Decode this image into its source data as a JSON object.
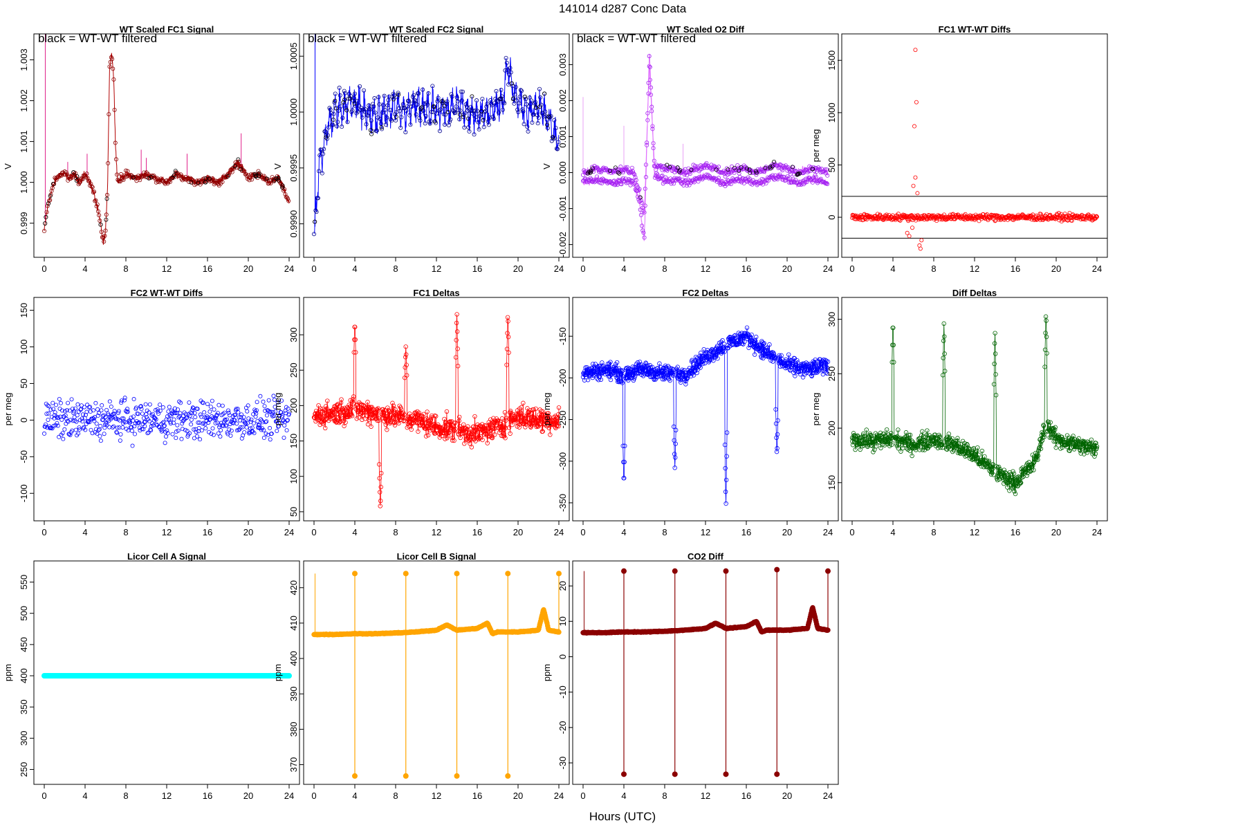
{
  "page": {
    "title": "141014   d287   Conc Data",
    "x_axis_label": "Hours (UTC)"
  },
  "chart_data": [
    {
      "type": "line",
      "title": "WT Scaled FC1 Signal",
      "annotation": "black = WT-WT filtered",
      "ylabel": "V",
      "xlim": [
        0,
        24
      ],
      "ylim": [
        0.9983,
        1.0035
      ],
      "xticks": [
        0,
        4,
        8,
        12,
        16,
        20,
        24
      ],
      "yticks": [
        0.999,
        1.0,
        1.001,
        1.002,
        1.003
      ],
      "yticklabels": [
        "0.999",
        "1.000",
        "1.001",
        "1.002",
        "1.003"
      ],
      "colors": {
        "line": "#b20000",
        "points": "#8b0000",
        "spikes": "#e0208a",
        "filtered": "#000000"
      },
      "series": [
        {
          "x": [
            0,
            0.2,
            0.5,
            1,
            1.5,
            2,
            2.5,
            3,
            3.5,
            4,
            4.5,
            5,
            5.5,
            5.8,
            6,
            6.2,
            6.4,
            6.6,
            6.8,
            7,
            7.2,
            7.5,
            8,
            9,
            10,
            11,
            12,
            13,
            14,
            15,
            16,
            17,
            18,
            19,
            19.5,
            20,
            21,
            22,
            23,
            23.5,
            24
          ],
          "values": [
            0.9988,
            0.9992,
            0.9996,
            1.0,
            1.0002,
            1.0002,
            1.0001,
            1.0002,
            1.0,
            1.0002,
            1.0,
            0.9996,
            0.999,
            0.9985,
            0.9988,
            0.9998,
            1.0028,
            1.0032,
            1.0026,
            1.0008,
            1.0,
            1.0001,
            1.0002,
            1.0001,
            1.0002,
            1.0001,
            1.0,
            1.0002,
            1.0001,
            1.0,
            1.0001,
            1.0,
            1.0002,
            1.0005,
            1.0003,
            1.0001,
            1.0002,
            1.0,
            1.0001,
            0.9998,
            0.9995
          ]
        }
      ],
      "spikes": [
        {
          "x": 0.1,
          "top": 1.0037
        },
        {
          "x": 2.3,
          "top": 1.0005
        },
        {
          "x": 4.2,
          "top": 1.0007
        },
        {
          "x": 9.5,
          "top": 1.0008
        },
        {
          "x": 10,
          "top": 1.0006
        },
        {
          "x": 14,
          "top": 1.0007
        },
        {
          "x": 19.3,
          "top": 1.0012
        }
      ]
    },
    {
      "type": "line",
      "title": "WT Scaled FC2 Signal",
      "annotation": "black = WT-WT filtered",
      "ylabel": "V",
      "xlim": [
        0,
        24
      ],
      "ylim": [
        0.99875,
        1.00065
      ],
      "xticks": [
        0,
        4,
        8,
        12,
        16,
        20,
        24
      ],
      "yticks": [
        0.999,
        0.9995,
        1.0,
        1.0005
      ],
      "yticklabels": [
        "0.9990",
        "0.9995",
        "1.0000",
        "1.0005"
      ],
      "colors": {
        "line": "#0000ff",
        "points": "#00008b",
        "filtered": "#000000"
      },
      "series": [
        {
          "x": [
            0,
            0.2,
            0.5,
            1,
            1.5,
            2,
            3,
            4,
            5,
            6,
            7,
            8,
            9,
            10,
            11,
            12,
            13,
            14,
            15,
            16,
            17,
            18,
            18.5,
            19,
            19.5,
            20,
            21,
            22,
            23,
            23.5,
            24
          ],
          "values": [
            0.99885,
            0.9991,
            0.9995,
            0.99975,
            0.9999,
            1.0,
            1.00005,
            1.0001,
            1.0,
            0.99995,
            1.0,
            1.00005,
            1.0,
            1.0001,
            1.0,
            1.00005,
            1.0,
            1.0001,
            1.0,
            0.99995,
            1.0,
            1.00005,
            1.0001,
            1.0004,
            1.0002,
            1.0001,
            1.0,
            1.00005,
            0.99995,
            0.9998,
            0.99975
          ]
        }
      ],
      "spikes": [
        {
          "x": 0.1,
          "top": 1.0007
        }
      ]
    },
    {
      "type": "line",
      "title": "WT Scaled O2 Diff",
      "annotation": "black = WT-WT filtered",
      "ylabel": "V",
      "xlim": [
        0,
        24
      ],
      "ylim": [
        -0.0022,
        0.0037
      ],
      "xticks": [
        0,
        4,
        8,
        12,
        16,
        20,
        24
      ],
      "yticks": [
        -0.002,
        -0.001,
        0.0,
        0.001,
        0.002,
        0.003
      ],
      "yticklabels": [
        "-0.002",
        "-0.001",
        "0.000",
        "0.001",
        "0.002",
        "0.003"
      ],
      "colors": {
        "line": "#e070ff",
        "points": "#a020f0",
        "spikes": "#e9a0f5",
        "filtered": "#000000"
      },
      "series": [
        {
          "name": "upper band",
          "x": [
            0,
            1,
            2,
            3,
            4,
            5,
            5.5,
            6,
            6.5,
            7,
            8,
            9,
            10,
            11,
            12,
            13,
            14,
            15,
            16,
            17,
            18,
            19,
            20,
            21,
            22,
            23,
            24
          ],
          "values": [
            0.0,
            0.0001,
            0.0001,
            0.0,
            0.0001,
            0.0,
            -0.0005,
            -0.0012,
            0.003,
            0.0002,
            0.0001,
            0.0001,
            0.0,
            0.0001,
            0.0002,
            0.0001,
            0.0,
            0.0001,
            0.0001,
            0.0,
            0.0001,
            0.0002,
            0.0001,
            0.0,
            0.0001,
            0.0001,
            0.0
          ]
        },
        {
          "name": "lower band",
          "x": [
            0,
            1,
            2,
            3,
            4,
            5,
            5.5,
            6,
            6.5,
            7,
            8,
            9,
            10,
            11,
            12,
            13,
            14,
            15,
            16,
            17,
            18,
            19,
            20,
            21,
            22,
            23,
            24
          ],
          "values": [
            -0.0003,
            -0.0002,
            -0.0002,
            -0.0003,
            -0.0002,
            -0.0003,
            -0.0008,
            -0.0019,
            0.0034,
            -0.0001,
            -0.0002,
            -0.0002,
            -0.0003,
            -0.0002,
            -0.0001,
            -0.0002,
            -0.0003,
            -0.0002,
            -0.0002,
            -0.0003,
            -0.0002,
            -0.0001,
            -0.0002,
            -0.0003,
            -0.0002,
            -0.0002,
            -0.0003
          ]
        }
      ],
      "spikes": [
        {
          "x": 0,
          "top": 0.0021
        },
        {
          "x": 4,
          "top": 0.0013
        },
        {
          "x": 9.8,
          "top": 0.0008
        }
      ]
    },
    {
      "type": "scatter",
      "title": "FC1 WT-WT Diffs",
      "ylabel": "per meg",
      "xlim": [
        0,
        24
      ],
      "ylim": [
        -330,
        1700
      ],
      "hlines": [
        200,
        -200
      ],
      "xticks": [
        0,
        4,
        8,
        12,
        16,
        20,
        24
      ],
      "yticks": [
        0,
        500,
        1000,
        1500
      ],
      "yticklabels": [
        "0",
        "500",
        "1000",
        "1500"
      ],
      "colors": {
        "points": "#ff0000"
      },
      "spread": 45,
      "outliers": [
        {
          "x": 6.2,
          "y": 1600
        },
        {
          "x": 6.3,
          "y": 1100
        },
        {
          "x": 6.1,
          "y": 870
        },
        {
          "x": 6.2,
          "y": 380
        },
        {
          "x": 6.0,
          "y": 300
        },
        {
          "x": 6.4,
          "y": 230
        },
        {
          "x": 5.4,
          "y": -150
        },
        {
          "x": 5.6,
          "y": -180
        },
        {
          "x": 6.6,
          "y": -270
        },
        {
          "x": 6.7,
          "y": -300
        },
        {
          "x": 6.8,
          "y": -220
        },
        {
          "x": 5.9,
          "y": -100
        }
      ]
    },
    {
      "type": "scatter",
      "title": "FC2 WT-WT Diffs",
      "ylabel": "per meg",
      "xlim": [
        0,
        24
      ],
      "ylim": [
        -130,
        160
      ],
      "xticks": [
        0,
        4,
        8,
        12,
        16,
        20,
        24
      ],
      "yticks": [
        -100,
        -50,
        0,
        50,
        100,
        150
      ],
      "yticklabels": [
        "-100",
        "-50",
        "0",
        "50",
        "100",
        "150"
      ],
      "colors": {
        "points": "#0000ff"
      },
      "spread": 38
    },
    {
      "type": "line",
      "title": "FC1 Deltas",
      "ylabel": "per meg",
      "xlim": [
        0,
        24
      ],
      "ylim": [
        45,
        345
      ],
      "xticks": [
        0,
        4,
        8,
        12,
        16,
        20,
        24
      ],
      "yticks": [
        50,
        100,
        150,
        200,
        250,
        300
      ],
      "yticklabels": [
        "50",
        "100",
        "150",
        "200",
        "250",
        "300"
      ],
      "colors": {
        "line": "#ff0000"
      },
      "series": [
        {
          "x": [
            0,
            2,
            4,
            6,
            8,
            10,
            12,
            14,
            16,
            18,
            20,
            22,
            24
          ],
          "values": [
            185,
            190,
            195,
            190,
            185,
            180,
            170,
            165,
            160,
            170,
            185,
            180,
            180
          ]
        }
      ],
      "spread": 25,
      "peaks": [
        {
          "x": 4,
          "y": 320
        },
        {
          "x": 6.5,
          "y": 52
        },
        {
          "x": 9,
          "y": 285
        },
        {
          "x": 14,
          "y": 335
        },
        {
          "x": 19,
          "y": 333
        }
      ]
    },
    {
      "type": "line",
      "title": "FC2 Deltas",
      "ylabel": "per meg",
      "xlim": [
        0,
        24
      ],
      "ylim": [
        -365,
        -110
      ],
      "xticks": [
        0,
        4,
        8,
        12,
        16,
        20,
        24
      ],
      "yticks": [
        -350,
        -300,
        -250,
        -200,
        -150
      ],
      "yticklabels": [
        "-350",
        "-300",
        "-250",
        "-200",
        "-150"
      ],
      "colors": {
        "line": "#0000ff"
      },
      "series": [
        {
          "x": [
            0,
            2,
            4,
            6,
            8,
            10,
            12,
            14,
            16,
            18,
            20,
            22,
            24
          ],
          "values": [
            -195,
            -190,
            -195,
            -190,
            -195,
            -195,
            -175,
            -160,
            -150,
            -170,
            -185,
            -190,
            -185
          ]
        }
      ],
      "spread": 15,
      "peaks": [
        {
          "x": 4,
          "y": -330
        },
        {
          "x": 9,
          "y": -310
        },
        {
          "x": 14,
          "y": -358
        },
        {
          "x": 19,
          "y": -295
        }
      ]
    },
    {
      "type": "line",
      "title": "Diff Deltas",
      "ylabel": "per meg",
      "xlim": [
        0,
        24
      ],
      "ylim": [
        120,
        315
      ],
      "xticks": [
        0,
        4,
        8,
        12,
        16,
        20,
        24
      ],
      "yticks": [
        150,
        200,
        250,
        300
      ],
      "yticklabels": [
        "150",
        "200",
        "250",
        "300"
      ],
      "colors": {
        "line": "#006400"
      },
      "series": [
        {
          "x": [
            0,
            2,
            4,
            6,
            8,
            10,
            12,
            14,
            16,
            18,
            19,
            20,
            22,
            24
          ],
          "values": [
            190,
            188,
            190,
            185,
            190,
            185,
            175,
            160,
            150,
            170,
            205,
            190,
            185,
            180
          ]
        }
      ],
      "spread": 12,
      "peaks": [
        {
          "x": 4,
          "y": 300
        },
        {
          "x": 9,
          "y": 298
        },
        {
          "x": 14,
          "y": 292
        },
        {
          "x": 19,
          "y": 308
        }
      ]
    },
    {
      "type": "line",
      "title": "Licor Cell A Signal",
      "ylabel": "ppm",
      "xlim": [
        0,
        24
      ],
      "ylim": [
        235,
        575
      ],
      "xticks": [
        0,
        4,
        8,
        12,
        16,
        20,
        24
      ],
      "yticks": [
        250,
        300,
        350,
        400,
        450,
        500,
        550
      ],
      "yticklabels": [
        "250",
        "300",
        "350",
        "400",
        "450",
        "500",
        "550"
      ],
      "colors": {
        "line": "#00ffff"
      },
      "series": [
        {
          "x": [
            0,
            24
          ],
          "values": [
            400,
            400
          ]
        }
      ]
    },
    {
      "type": "line",
      "title": "Licor Cell B Signal",
      "ylabel": "ppm",
      "xlim": [
        0,
        24
      ],
      "ylim": [
        366,
        426
      ],
      "xticks": [
        0,
        4,
        8,
        12,
        16,
        20,
        24
      ],
      "yticks": [
        370,
        380,
        390,
        400,
        410,
        420
      ],
      "yticklabels": [
        "370",
        "380",
        "390",
        "400",
        "410",
        "420"
      ],
      "colors": {
        "line": "#ffa500"
      },
      "series": [
        {
          "x": [
            0,
            2,
            4,
            6,
            8,
            10,
            12,
            13,
            14,
            16,
            17,
            17.5,
            18,
            20,
            22,
            22.5,
            23,
            24
          ],
          "values": [
            406.8,
            406.8,
            407,
            407,
            407.2,
            407.5,
            408,
            409.5,
            408,
            408.5,
            410,
            407,
            407.5,
            407.5,
            408,
            414,
            408,
            407.5
          ]
        }
      ],
      "drops": [
        {
          "x": 4.0,
          "low": 366.8,
          "high": 424
        },
        {
          "x": 9.0,
          "low": 366.8,
          "high": 424
        },
        {
          "x": 14.0,
          "low": 366.8,
          "high": 424
        },
        {
          "x": 19.0,
          "low": 366.8,
          "high": 424
        },
        {
          "x": 24.0,
          "low": 407,
          "high": 424
        }
      ]
    },
    {
      "type": "line",
      "title": "CO2 Diff",
      "ylabel": "ppm",
      "xlim": [
        0,
        24
      ],
      "ylim": [
        -34.5,
        25.5
      ],
      "xticks": [
        0,
        4,
        8,
        12,
        16,
        20,
        24
      ],
      "yticks": [
        -30,
        -20,
        -10,
        0,
        10,
        20
      ],
      "yticklabels": [
        "-30",
        "-20",
        "-10",
        "0",
        "10",
        "20"
      ],
      "colors": {
        "line": "#8b0000"
      },
      "series": [
        {
          "x": [
            0,
            2,
            4,
            6,
            8,
            10,
            12,
            13,
            14,
            16,
            17,
            17.5,
            18,
            20,
            22,
            22.5,
            23,
            24
          ],
          "values": [
            6.8,
            6.8,
            7,
            7,
            7.2,
            7.5,
            8,
            9.5,
            8,
            8.5,
            10,
            7,
            7.5,
            7.5,
            8,
            14,
            8,
            7.5
          ]
        }
      ],
      "drops": [
        {
          "x": 4.0,
          "low": -33.2,
          "high": 24.2
        },
        {
          "x": 9.0,
          "low": -33.2,
          "high": 24.2
        },
        {
          "x": 14.0,
          "low": -33.2,
          "high": 24.2
        },
        {
          "x": 19.0,
          "low": -33.2,
          "high": 24.6
        },
        {
          "x": 24.0,
          "low": 7,
          "high": 24.2
        }
      ]
    }
  ]
}
